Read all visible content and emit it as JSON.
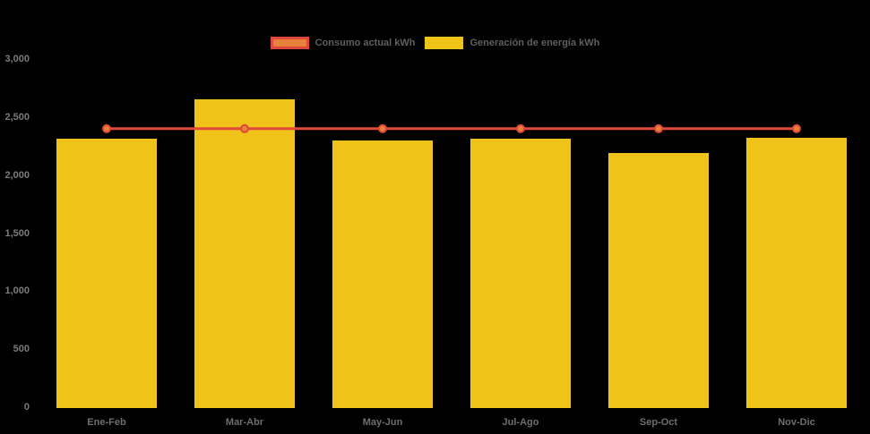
{
  "background_color": "#000000",
  "legend": {
    "items": [
      {
        "label": "Consumo actual kWh",
        "type": "line",
        "fill": "#e8823b",
        "border": "#e0493a"
      },
      {
        "label": "Generación de energía kWh",
        "type": "bar",
        "fill": "#efc319",
        "border": "#efc319"
      }
    ]
  },
  "chart_data": {
    "type": "bar",
    "title": "",
    "xlabel": "",
    "ylabel": "",
    "categories": [
      "Ene-Feb",
      "Mar-Abr",
      "May-Jun",
      "Jul-Ago",
      "Sep-Oct",
      "Nov-Dic"
    ],
    "series": [
      {
        "name": "Consumo actual kWh",
        "type": "line",
        "color": "#e0493a",
        "point_fill": "#e8823b",
        "values": [
          2400,
          2400,
          2400,
          2400,
          2400,
          2400
        ]
      },
      {
        "name": "Generación de energía kWh",
        "type": "bar",
        "color": "#efc319",
        "values": [
          2310,
          2655,
          2300,
          2310,
          2190,
          2325
        ]
      }
    ],
    "ylim": [
      0,
      3000
    ],
    "y_ticks": [
      {
        "value": 0,
        "label": "0"
      },
      {
        "value": 500,
        "label": "500"
      },
      {
        "value": 1000,
        "label": "1,000"
      },
      {
        "value": 1500,
        "label": "1,500"
      },
      {
        "value": 2000,
        "label": "2,000"
      },
      {
        "value": 2500,
        "label": "2,500"
      },
      {
        "value": 3000,
        "label": "3,000"
      }
    ],
    "grid": false,
    "legend_position": "top"
  }
}
